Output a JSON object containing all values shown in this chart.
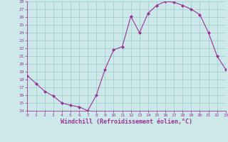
{
  "x": [
    0,
    1,
    2,
    3,
    4,
    5,
    6,
    7,
    8,
    9,
    10,
    11,
    12,
    13,
    14,
    15,
    16,
    17,
    18,
    19,
    20,
    21,
    22,
    23
  ],
  "y": [
    18.5,
    17.5,
    16.5,
    15.9,
    15.0,
    14.7,
    14.5,
    14.0,
    16.0,
    19.3,
    21.8,
    22.2,
    26.1,
    24.0,
    26.5,
    27.5,
    28.0,
    27.9,
    27.5,
    27.0,
    26.3,
    24.0,
    21.0,
    19.3
  ],
  "xlim": [
    0,
    23
  ],
  "ylim": [
    14,
    28
  ],
  "yticks": [
    14,
    15,
    16,
    17,
    18,
    19,
    20,
    21,
    22,
    23,
    24,
    25,
    26,
    27,
    28
  ],
  "xticks": [
    0,
    1,
    2,
    3,
    4,
    5,
    6,
    7,
    8,
    9,
    10,
    11,
    12,
    13,
    14,
    15,
    16,
    17,
    18,
    19,
    20,
    21,
    22,
    23
  ],
  "xlabel": "Windchill (Refroidissement éolien,°C)",
  "line_color": "#993399",
  "marker": "D",
  "marker_size": 2,
  "bg_color": "#cce8e8",
  "grid_color": "#99cccc",
  "tick_fontsize": 4.5,
  "xlabel_fontsize": 6.0,
  "linewidth": 0.8
}
